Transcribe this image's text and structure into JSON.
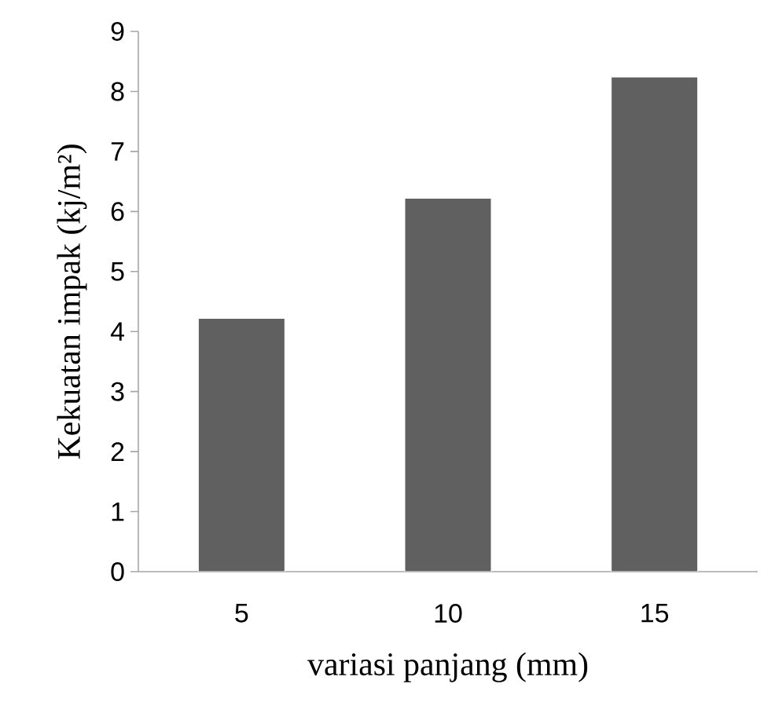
{
  "chart_data": {
    "type": "bar",
    "xlabel": "variasi panjang (mm)",
    "ylabel": "Kekuatan impak (kj/m²)",
    "categories": [
      "5",
      "10",
      "15"
    ],
    "values": [
      4.22,
      6.22,
      8.24
    ],
    "color": "#606060",
    "ylim": [
      0,
      9
    ],
    "yticks": [
      0,
      1,
      2,
      3,
      4,
      5,
      6,
      7,
      8,
      9
    ],
    "grid": false
  }
}
